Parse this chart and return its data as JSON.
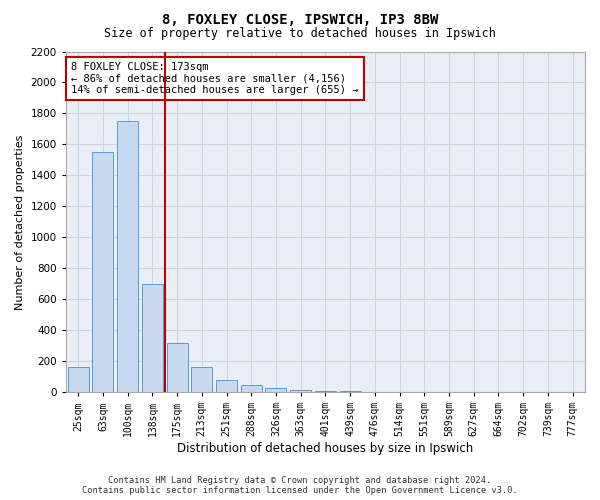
{
  "title1": "8, FOXLEY CLOSE, IPSWICH, IP3 8BW",
  "title2": "Size of property relative to detached houses in Ipswich",
  "xlabel": "Distribution of detached houses by size in Ipswich",
  "ylabel": "Number of detached properties",
  "categories": [
    "25sqm",
    "63sqm",
    "100sqm",
    "138sqm",
    "175sqm",
    "213sqm",
    "251sqm",
    "288sqm",
    "326sqm",
    "363sqm",
    "401sqm",
    "439sqm",
    "476sqm",
    "514sqm",
    "551sqm",
    "589sqm",
    "627sqm",
    "664sqm",
    "702sqm",
    "739sqm",
    "777sqm"
  ],
  "values": [
    160,
    1550,
    1750,
    700,
    320,
    160,
    80,
    45,
    25,
    15,
    10,
    5,
    3,
    2,
    1,
    1,
    0,
    0,
    0,
    0,
    0
  ],
  "bar_color": "#c6d9f0",
  "bar_edge_color": "#5b9bd5",
  "vline_pos": 3.5,
  "vline_color": "#c00000",
  "annotation_text": "8 FOXLEY CLOSE: 173sqm\n← 86% of detached houses are smaller (4,156)\n14% of semi-detached houses are larger (655) →",
  "annotation_box_color": "#c00000",
  "ylim": [
    0,
    2200
  ],
  "yticks": [
    0,
    200,
    400,
    600,
    800,
    1000,
    1200,
    1400,
    1600,
    1800,
    2000,
    2200
  ],
  "grid_color": "#cdd5e0",
  "background_color": "#eaeff6",
  "footer1": "Contains HM Land Registry data © Crown copyright and database right 2024.",
  "footer2": "Contains public sector information licensed under the Open Government Licence v3.0."
}
